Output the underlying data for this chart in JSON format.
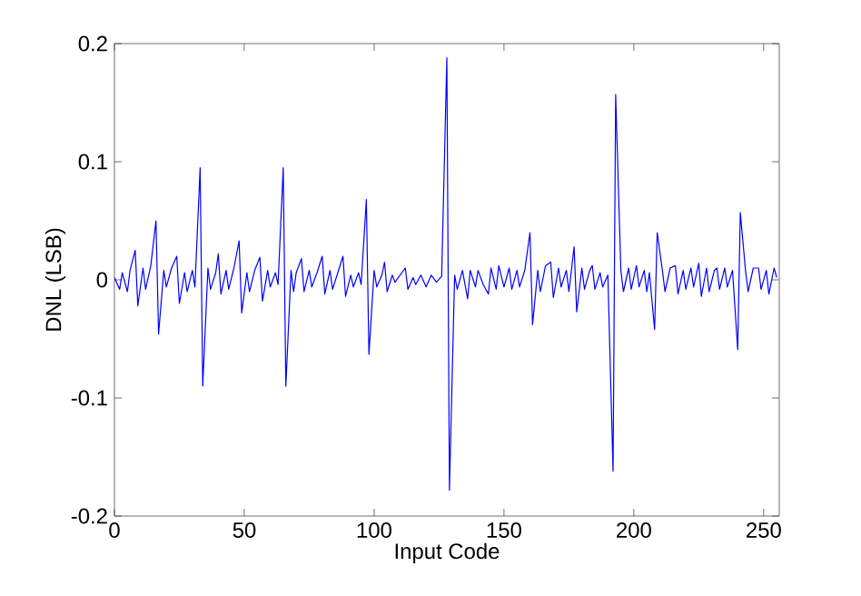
{
  "chart_data": {
    "type": "line",
    "xlabel": "Input Code",
    "ylabel": "DNL (LSB)",
    "xlim": [
      0,
      256
    ],
    "ylim": [
      -0.2,
      0.2
    ],
    "xticks": [
      0,
      50,
      100,
      150,
      200,
      250
    ],
    "yticks": [
      -0.2,
      -0.1,
      0,
      0.1,
      0.2
    ],
    "series": [
      {
        "color": "#0000ff",
        "x": [
          0,
          2,
          3,
          5,
          6,
          8,
          9,
          11,
          12,
          14,
          16,
          17,
          19,
          20,
          22,
          24,
          25,
          27,
          28,
          30,
          31,
          33,
          34,
          36,
          37,
          39,
          40,
          41,
          43,
          44,
          46,
          48,
          49,
          51,
          52,
          54,
          56,
          57,
          59,
          60,
          62,
          63,
          65,
          66,
          68,
          69,
          70,
          72,
          73,
          75,
          76,
          78,
          80,
          81,
          83,
          84,
          86,
          88,
          89,
          91,
          92,
          94,
          95,
          97,
          98,
          100,
          101,
          103,
          104,
          105,
          107,
          108,
          110,
          112,
          113,
          115,
          116,
          118,
          120,
          122,
          124,
          126,
          128,
          129,
          131,
          132,
          134,
          136,
          137,
          139,
          140,
          142,
          144,
          145,
          147,
          148,
          150,
          152,
          153,
          155,
          156,
          158,
          160,
          161,
          163,
          164,
          166,
          168,
          169,
          171,
          172,
          174,
          175,
          177,
          178,
          180,
          181,
          183,
          184,
          185,
          187,
          188,
          190,
          192,
          193,
          195,
          196,
          198,
          199,
          201,
          202,
          204,
          205,
          206,
          208,
          209,
          211,
          212,
          214,
          216,
          217,
          219,
          220,
          222,
          223,
          225,
          226,
          228,
          229,
          231,
          232,
          233,
          235,
          236,
          238,
          240,
          241,
          243,
          244,
          246,
          248,
          249,
          251,
          252,
          254,
          255
        ],
        "values": [
          0.002,
          -0.008,
          0.006,
          -0.01,
          0.008,
          0.025,
          -0.022,
          0.01,
          -0.008,
          0.012,
          0.05,
          -0.046,
          0.008,
          -0.006,
          0.01,
          0.02,
          -0.02,
          0.006,
          -0.01,
          0.008,
          -0.006,
          0.095,
          -0.09,
          0.01,
          -0.008,
          0.006,
          0.022,
          -0.012,
          0.008,
          -0.008,
          0.01,
          0.033,
          -0.028,
          0.006,
          -0.01,
          0.008,
          0.019,
          -0.018,
          0.008,
          -0.006,
          0.006,
          -0.004,
          0.095,
          -0.09,
          0.008,
          -0.01,
          0.006,
          0.018,
          -0.01,
          0.008,
          -0.006,
          0.006,
          0.02,
          -0.012,
          0.008,
          -0.008,
          0.006,
          0.02,
          -0.014,
          0.004,
          -0.006,
          0.006,
          -0.004,
          0.068,
          -0.063,
          0.008,
          -0.006,
          0.004,
          0.015,
          -0.01,
          0.004,
          -0.002,
          0.004,
          0.01,
          -0.008,
          0.002,
          -0.004,
          0.004,
          -0.006,
          0.004,
          -0.002,
          0.003,
          0.188,
          -0.178,
          0.004,
          -0.008,
          0.008,
          -0.016,
          0.008,
          -0.006,
          0.008,
          -0.004,
          -0.012,
          0.01,
          -0.008,
          0.012,
          -0.006,
          0.01,
          -0.008,
          0.008,
          -0.006,
          0.008,
          0.04,
          -0.038,
          0.008,
          -0.01,
          0.012,
          0.015,
          -0.015,
          0.01,
          -0.006,
          0.008,
          -0.01,
          0.028,
          -0.027,
          0.01,
          -0.008,
          0.008,
          0.012,
          -0.008,
          0.006,
          -0.006,
          0.004,
          -0.162,
          0.157,
          0.008,
          -0.01,
          0.01,
          -0.008,
          0.012,
          -0.006,
          0.008,
          -0.01,
          0.006,
          -0.042,
          0.04,
          0.008,
          -0.01,
          0.01,
          0.012,
          -0.012,
          0.008,
          -0.008,
          0.01,
          -0.006,
          0.014,
          -0.014,
          0.01,
          -0.01,
          0.008,
          0.01,
          -0.008,
          0.01,
          -0.006,
          0.008,
          -0.059,
          0.057,
          0.008,
          -0.01,
          0.01,
          0.01,
          -0.008,
          0.008,
          -0.012,
          0.01,
          0.002
        ]
      }
    ]
  }
}
